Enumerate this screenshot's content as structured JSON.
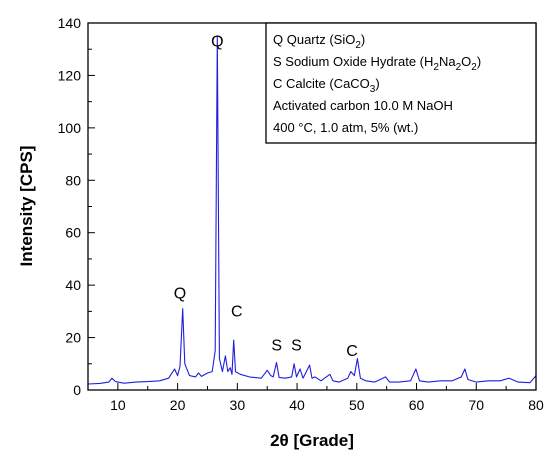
{
  "chart_data": {
    "type": "line",
    "xlabel": "2θ [Grade]",
    "ylabel": "Intensity [CPS]",
    "xlim": [
      5,
      80
    ],
    "ylim": [
      0,
      140
    ],
    "xticks": [
      10,
      20,
      30,
      40,
      50,
      60,
      70,
      80
    ],
    "yticks": [
      0,
      20,
      40,
      60,
      80,
      100,
      120,
      140
    ],
    "grid": false,
    "line_color": "#1f1fdd",
    "series": [
      {
        "x": [
          5,
          7,
          8.5,
          9,
          9.6,
          11,
          13,
          15,
          17,
          18.5,
          19.5,
          20,
          20.4,
          20.85,
          21.2,
          22,
          23,
          23.5,
          24,
          25,
          25.8,
          26.3,
          26.65,
          27.0,
          27.5,
          28,
          28.4,
          28.8,
          29.1,
          29.4,
          29.7,
          30.5,
          32,
          34,
          34.5,
          35,
          35.6,
          36,
          36.55,
          37,
          38,
          39.1,
          39.5,
          39.9,
          40.5,
          41,
          42.1,
          42.5,
          43,
          44,
          45.5,
          46,
          47,
          48.5,
          49,
          49.6,
          50.1,
          50.6,
          51.5,
          53,
          54.8,
          55.5,
          57,
          59,
          59.9,
          60.5,
          62,
          64,
          66,
          67.5,
          68.1,
          68.6,
          70,
          72,
          74,
          75.5,
          77,
          79,
          80
        ],
        "y": [
          2.3,
          2.5,
          3.0,
          4.5,
          3.2,
          2.6,
          3.0,
          3.2,
          3.5,
          4.5,
          8.0,
          5.5,
          9.0,
          31.0,
          10.0,
          5.5,
          5.0,
          6.5,
          5.2,
          6.5,
          7.0,
          15.0,
          135.0,
          12.0,
          7.0,
          13.0,
          7.0,
          8.5,
          6.0,
          19.0,
          7.0,
          6.0,
          5.0,
          4.5,
          6.0,
          7.5,
          5.5,
          5.0,
          10.5,
          4.8,
          4.5,
          5.0,
          10.0,
          5.0,
          8.0,
          4.5,
          9.5,
          4.5,
          5.0,
          3.5,
          6.0,
          3.5,
          3.0,
          4.5,
          7.0,
          5.5,
          12.0,
          4.5,
          3.5,
          3.0,
          5.0,
          3.0,
          3.0,
          3.5,
          8.0,
          3.5,
          3.0,
          3.5,
          3.5,
          5.0,
          8.0,
          4.0,
          3.0,
          3.5,
          3.5,
          4.5,
          3.0,
          2.8,
          5.5
        ]
      }
    ],
    "peak_labels": [
      {
        "text": "Q",
        "x": 26.65,
        "y": 131
      },
      {
        "text": "Q",
        "x": 20.4,
        "y": 35
      },
      {
        "text": "C",
        "x": 29.9,
        "y": 28
      },
      {
        "text": "S",
        "x": 36.6,
        "y": 15
      },
      {
        "text": "S",
        "x": 39.9,
        "y": 15
      },
      {
        "text": "C",
        "x": 49.2,
        "y": 13
      }
    ],
    "legend": {
      "placement": "top-right",
      "lines": [
        [
          {
            "t": "Q Quartz (SiO"
          },
          {
            "t": "2",
            "sub": true
          },
          {
            "t": ")"
          }
        ],
        [
          {
            "t": "S  Sodium Oxide Hydrate (H"
          },
          {
            "t": "2",
            "sub": true
          },
          {
            "t": "Na"
          },
          {
            "t": "2",
            "sub": true
          },
          {
            "t": "O"
          },
          {
            "t": "2",
            "sub": true
          },
          {
            "t": ")"
          }
        ],
        [
          {
            "t": "C Calcite (CaCO"
          },
          {
            "t": "3",
            "sub": true
          },
          {
            "t": ")"
          }
        ],
        [
          {
            "t": "Activated carbon 10.0 M NaOH"
          }
        ],
        [
          {
            "t": "400 °C, 1.0 atm, 5% (wt.)"
          }
        ]
      ]
    }
  }
}
